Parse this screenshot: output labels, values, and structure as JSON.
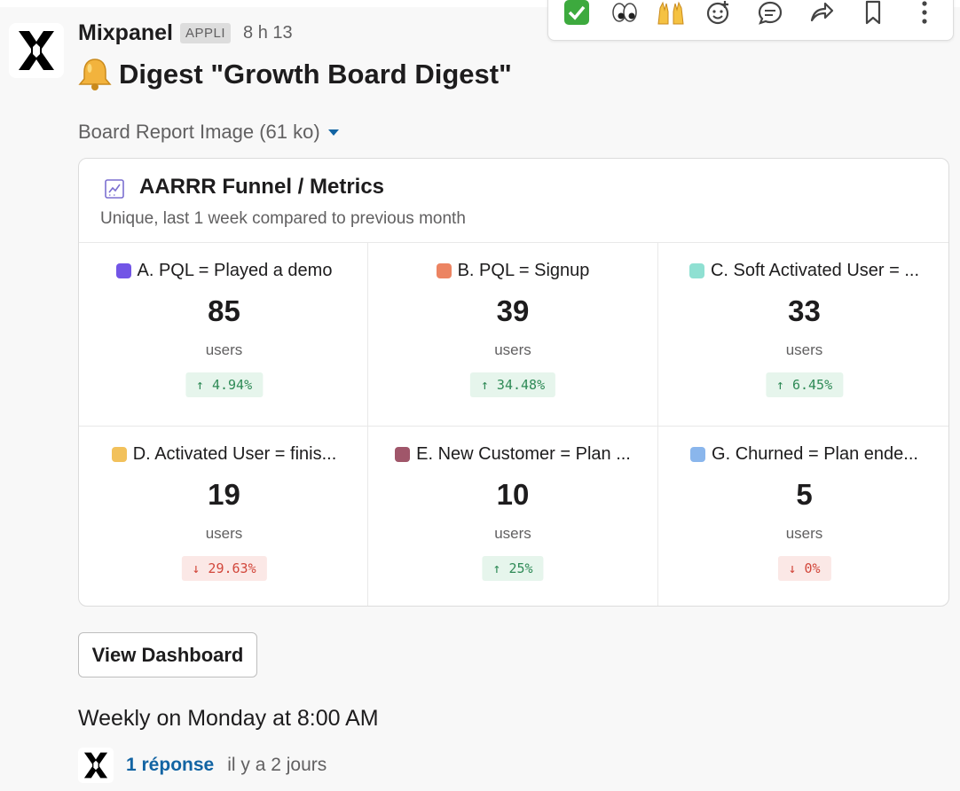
{
  "message": {
    "sender": "Mixpanel",
    "app_badge": "APPLI",
    "time": "8 h 13",
    "title": "Digest \"Growth Board Digest\"",
    "attachment_label": "Board Report Image (61 ko)",
    "schedule": "Weekly on Monday at 8:00 AM",
    "view_button": "View Dashboard"
  },
  "toolbar": {
    "icons": [
      "check-mark-reaction",
      "eyes-reaction",
      "raised-hands-reaction",
      "add-reaction-icon",
      "reply-in-thread-icon",
      "share-icon",
      "save-bookmark-icon",
      "more-actions-icon"
    ]
  },
  "card": {
    "title": "AARRR Funnel / Metrics",
    "subtitle": "Unique, last 1 week compared to previous month",
    "metrics": [
      {
        "label": "A. PQL = Played a demo",
        "value": "85",
        "unit": "users",
        "delta": "↑ 4.94%",
        "direction": "up",
        "color": "#7255e6"
      },
      {
        "label": "B. PQL = Signup",
        "value": "39",
        "unit": "users",
        "delta": "↑ 34.48%",
        "direction": "up",
        "color": "#ec8462"
      },
      {
        "label": "C. Soft Activated User = ...",
        "value": "33",
        "unit": "users",
        "delta": "↑ 6.45%",
        "direction": "up",
        "color": "#8fe0d2"
      },
      {
        "label": "D. Activated User = finis...",
        "value": "19",
        "unit": "users",
        "delta": "↓ 29.63%",
        "direction": "down",
        "color": "#f2c15b"
      },
      {
        "label": "E. New Customer = Plan ...",
        "value": "10",
        "unit": "users",
        "delta": "↑ 25%",
        "direction": "up",
        "color": "#a0566a"
      },
      {
        "label": "G. Churned = Plan ende...",
        "value": "5",
        "unit": "users",
        "delta": "↓ 0%",
        "direction": "down",
        "color": "#8ab6ec"
      }
    ]
  },
  "thread": {
    "replies": "1 réponse",
    "last_reply": "il y a 2 jours"
  }
}
